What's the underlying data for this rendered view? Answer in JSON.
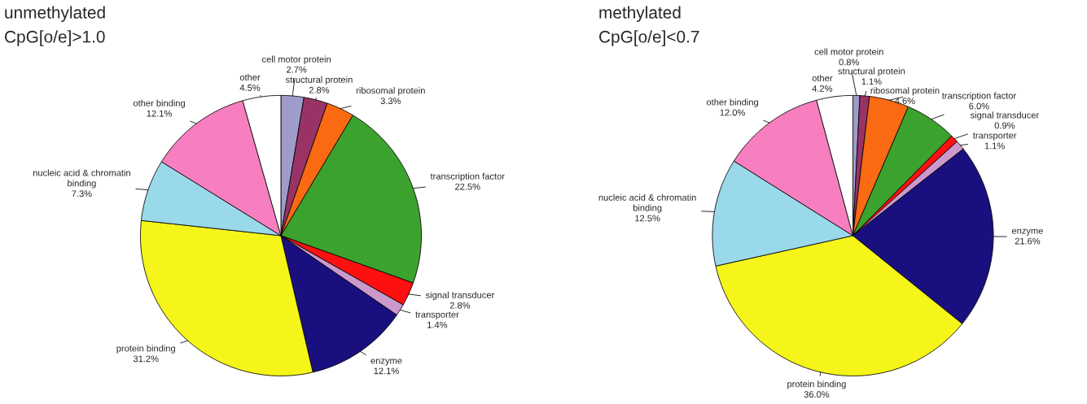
{
  "chart_data": [
    {
      "type": "pie",
      "title": "unmethylated",
      "subtitle": "CpG[o/e]>1.0",
      "categories": [
        "cell motor protein",
        "structural protein",
        "ribosomal protein",
        "transcription factor",
        "signal transducer",
        "transporter",
        "enzyme",
        "protein binding",
        "nucleic acid & chromatin\nbinding",
        "other binding",
        "other"
      ],
      "values": [
        2.7,
        2.8,
        3.3,
        22.5,
        2.8,
        1.4,
        12.1,
        31.2,
        7.3,
        12.1,
        4.5
      ],
      "value_labels": [
        "2.7%",
        "2.8%",
        "3.3%",
        "22.5%",
        "2.8%",
        "1.4%",
        "12.1%",
        "31.2%",
        "7.3%",
        "12.1%",
        "4.5%"
      ],
      "colors": [
        "#9f9ccc",
        "#993366",
        "#f96a12",
        "#3ca22e",
        "#ff1010",
        "#cc99cc",
        "#1a0f7f",
        "#f5f51a",
        "#99d9ea",
        "#f77fbf",
        "#ffffff"
      ]
    },
    {
      "type": "pie",
      "title": "methylated",
      "subtitle": "CpG[o/e]<0.7",
      "categories": [
        "cell motor protein",
        "structural protein",
        "ribosomal protein",
        "transcription factor",
        "signal transducer",
        "transporter",
        "enzyme",
        "protein binding",
        "nucleic acid & chromatin\nbinding",
        "other binding",
        "other"
      ],
      "values": [
        0.8,
        1.1,
        4.6,
        6.0,
        0.9,
        1.1,
        21.6,
        36.0,
        12.5,
        12.0,
        4.2
      ],
      "value_labels": [
        "0.8%",
        "1.1%",
        "4.6%",
        "6.0%",
        "0.9%",
        "1.1%",
        "21.6%",
        "36.0%",
        "12.5%",
        "12.0%",
        "4.2%"
      ],
      "colors": [
        "#9f9ccc",
        "#993366",
        "#f96a12",
        "#3ca22e",
        "#ff1010",
        "#cc99cc",
        "#1a0f7f",
        "#f5f51a",
        "#99d9ea",
        "#f77fbf",
        "#ffffff"
      ]
    }
  ]
}
